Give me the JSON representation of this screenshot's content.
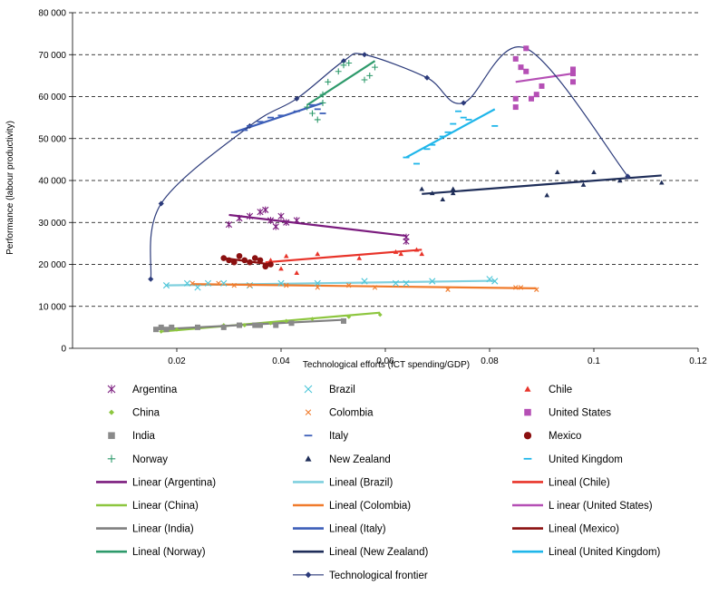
{
  "chart_data": {
    "type": "scatter",
    "xlabel": "Technological efforts (ICT spending/GDP)",
    "ylabel": "Performance (labour productivity)",
    "xlim": [
      0,
      0.12
    ],
    "ylim": [
      0,
      80000
    ],
    "x_ticks": [
      0.02,
      0.04,
      0.06,
      0.08,
      0.1,
      0.12
    ],
    "x_tick_labels": [
      "0.02",
      "0.04",
      "0.06",
      "0.08",
      "0.1",
      "0.12"
    ],
    "y_ticks": [
      0,
      10000,
      20000,
      30000,
      40000,
      50000,
      60000,
      70000,
      80000
    ],
    "y_tick_labels": [
      "0",
      "10 000",
      "20 000",
      "30 000",
      "40 000",
      "50 000",
      "60 000",
      "70 000",
      "80 000"
    ],
    "grid": "horizontal dashed",
    "legend_position": "bottom",
    "series": [
      {
        "name": "Argentina",
        "marker": "asterisk",
        "color": "#7b1c7e",
        "points": [
          [
            0.03,
            29500
          ],
          [
            0.032,
            31000
          ],
          [
            0.034,
            31500
          ],
          [
            0.036,
            32500
          ],
          [
            0.037,
            33000
          ],
          [
            0.038,
            30500
          ],
          [
            0.039,
            29000
          ],
          [
            0.04,
            31500
          ],
          [
            0.041,
            30000
          ],
          [
            0.043,
            30500
          ],
          [
            0.064,
            25500
          ],
          [
            0.064,
            26500
          ]
        ]
      },
      {
        "name": "Brazil",
        "marker": "x",
        "color": "#4cc6d8",
        "points": [
          [
            0.018,
            15000
          ],
          [
            0.022,
            15500
          ],
          [
            0.024,
            14500
          ],
          [
            0.026,
            15500
          ],
          [
            0.029,
            15500
          ],
          [
            0.034,
            15000
          ],
          [
            0.04,
            15500
          ],
          [
            0.047,
            15500
          ],
          [
            0.056,
            16000
          ],
          [
            0.062,
            15500
          ],
          [
            0.064,
            15500
          ],
          [
            0.069,
            16000
          ],
          [
            0.08,
            16500
          ],
          [
            0.081,
            16000
          ]
        ]
      },
      {
        "name": "Chile",
        "marker": "triangle",
        "color": "#e8342a",
        "points": [
          [
            0.038,
            21000
          ],
          [
            0.04,
            19000
          ],
          [
            0.041,
            22000
          ],
          [
            0.043,
            18000
          ],
          [
            0.047,
            22500
          ],
          [
            0.055,
            21500
          ],
          [
            0.062,
            23000
          ],
          [
            0.063,
            22500
          ],
          [
            0.066,
            23500
          ],
          [
            0.067,
            22500
          ]
        ]
      },
      {
        "name": "China",
        "marker": "diamond",
        "color": "#8dc63f",
        "points": [
          [
            0.017,
            4000
          ],
          [
            0.02,
            4500
          ],
          [
            0.024,
            5000
          ],
          [
            0.029,
            5500
          ],
          [
            0.033,
            5500
          ],
          [
            0.038,
            6000
          ],
          [
            0.041,
            6500
          ],
          [
            0.046,
            7000
          ],
          [
            0.053,
            7500
          ],
          [
            0.059,
            8000
          ]
        ]
      },
      {
        "name": "Colombia",
        "marker": "x-small",
        "color": "#f07b2c",
        "points": [
          [
            0.023,
            15500
          ],
          [
            0.028,
            15500
          ],
          [
            0.031,
            15000
          ],
          [
            0.034,
            15000
          ],
          [
            0.041,
            15000
          ],
          [
            0.047,
            14500
          ],
          [
            0.053,
            15000
          ],
          [
            0.058,
            14500
          ],
          [
            0.072,
            14000
          ],
          [
            0.085,
            14500
          ],
          [
            0.086,
            14500
          ],
          [
            0.089,
            14000
          ]
        ]
      },
      {
        "name": "United States",
        "marker": "square",
        "color": "#b54fb5",
        "points": [
          [
            0.085,
            57500
          ],
          [
            0.085,
            59500
          ],
          [
            0.085,
            69000
          ],
          [
            0.086,
            67000
          ],
          [
            0.087,
            71500
          ],
          [
            0.087,
            66000
          ],
          [
            0.088,
            59500
          ],
          [
            0.089,
            60500
          ],
          [
            0.09,
            62500
          ],
          [
            0.096,
            66500
          ],
          [
            0.096,
            65500
          ],
          [
            0.096,
            63500
          ]
        ]
      },
      {
        "name": "India",
        "marker": "square",
        "color": "#8a8a8a",
        "points": [
          [
            0.016,
            4500
          ],
          [
            0.017,
            5000
          ],
          [
            0.018,
            4500
          ],
          [
            0.019,
            5000
          ],
          [
            0.024,
            5000
          ],
          [
            0.029,
            5000
          ],
          [
            0.032,
            5500
          ],
          [
            0.035,
            5500
          ],
          [
            0.036,
            5500
          ],
          [
            0.039,
            5500
          ],
          [
            0.042,
            6000
          ],
          [
            0.052,
            6500
          ]
        ]
      },
      {
        "name": "Italy",
        "marker": "dash",
        "color": "#3d5fb8",
        "points": [
          [
            0.031,
            51500
          ],
          [
            0.033,
            52000
          ],
          [
            0.034,
            53000
          ],
          [
            0.036,
            54000
          ],
          [
            0.038,
            55000
          ],
          [
            0.04,
            55500
          ],
          [
            0.043,
            56500
          ],
          [
            0.046,
            58000
          ],
          [
            0.047,
            57000
          ],
          [
            0.048,
            56000
          ]
        ]
      },
      {
        "name": "Mexico",
        "marker": "circle",
        "color": "#8b1010",
        "points": [
          [
            0.029,
            21500
          ],
          [
            0.03,
            21000
          ],
          [
            0.031,
            20500
          ],
          [
            0.032,
            22000
          ],
          [
            0.033,
            21000
          ],
          [
            0.034,
            20500
          ],
          [
            0.035,
            21500
          ],
          [
            0.036,
            21000
          ],
          [
            0.037,
            19500
          ],
          [
            0.038,
            20000
          ]
        ]
      },
      {
        "name": "Norway",
        "marker": "plus",
        "color": "#2e9a6b",
        "points": [
          [
            0.045,
            57500
          ],
          [
            0.046,
            56000
          ],
          [
            0.047,
            54500
          ],
          [
            0.048,
            60500
          ],
          [
            0.048,
            58500
          ],
          [
            0.049,
            63500
          ],
          [
            0.051,
            66000
          ],
          [
            0.052,
            67500
          ],
          [
            0.053,
            68000
          ],
          [
            0.056,
            64000
          ],
          [
            0.057,
            65000
          ],
          [
            0.058,
            67000
          ]
        ]
      },
      {
        "name": "New Zealand",
        "marker": "triangle",
        "color": "#1f2e59",
        "points": [
          [
            0.067,
            38000
          ],
          [
            0.069,
            37000
          ],
          [
            0.071,
            35500
          ],
          [
            0.073,
            37000
          ],
          [
            0.073,
            38000
          ],
          [
            0.091,
            36500
          ],
          [
            0.093,
            42000
          ],
          [
            0.098,
            39000
          ],
          [
            0.1,
            42000
          ],
          [
            0.105,
            40000
          ],
          [
            0.113,
            39500
          ]
        ]
      },
      {
        "name": "United Kingdom",
        "marker": "dash",
        "color": "#1fb6ea",
        "points": [
          [
            0.064,
            45500
          ],
          [
            0.066,
            44000
          ],
          [
            0.068,
            47500
          ],
          [
            0.069,
            48500
          ],
          [
            0.071,
            50500
          ],
          [
            0.072,
            51500
          ],
          [
            0.073,
            53500
          ],
          [
            0.074,
            56500
          ],
          [
            0.075,
            55000
          ],
          [
            0.076,
            54500
          ],
          [
            0.081,
            53000
          ]
        ]
      }
    ],
    "trendlines": [
      {
        "name": "Linear (Argentina)",
        "color": "#7b1c7e",
        "x": [
          0.03,
          0.064
        ],
        "y": [
          31800,
          26800
        ]
      },
      {
        "name": "Lineal (Brazil)",
        "color": "#7fd0de",
        "x": [
          0.018,
          0.081
        ],
        "y": [
          15000,
          16100
        ]
      },
      {
        "name": "Lineal (Chile)",
        "color": "#e8342a",
        "x": [
          0.037,
          0.067
        ],
        "y": [
          20500,
          23500
        ]
      },
      {
        "name": "Linear (China)",
        "color": "#8dc63f",
        "x": [
          0.017,
          0.059
        ],
        "y": [
          4000,
          8500
        ]
      },
      {
        "name": "Lineal (Colombia)",
        "color": "#f07b2c",
        "x": [
          0.023,
          0.089
        ],
        "y": [
          15300,
          14300
        ]
      },
      {
        "name": "Linear (United States)",
        "color": "#b54fb5",
        "x": [
          0.085,
          0.096
        ],
        "y": [
          63500,
          65500
        ]
      },
      {
        "name": "Linear (India)",
        "color": "#808080",
        "x": [
          0.016,
          0.052
        ],
        "y": [
          4500,
          6800
        ]
      },
      {
        "name": "Lineal (Italy)",
        "color": "#3d5fb8",
        "x": [
          0.031,
          0.048
        ],
        "y": [
          51500,
          58500
        ]
      },
      {
        "name": "Lineal (Mexico)",
        "color": "#8b1010",
        "x": [
          0.029,
          0.038
        ],
        "y": [
          21500,
          20000
        ]
      },
      {
        "name": "Lineal (Norway)",
        "color": "#2e9a6b",
        "x": [
          0.045,
          0.058
        ],
        "y": [
          58000,
          68500
        ]
      },
      {
        "name": "Lineal (New Zealand)",
        "color": "#1f2e59",
        "x": [
          0.067,
          0.113
        ],
        "y": [
          36800,
          41200
        ]
      },
      {
        "name": "Lineal (United Kingdom)",
        "color": "#1fb6ea",
        "x": [
          0.064,
          0.081
        ],
        "y": [
          45500,
          57000
        ]
      }
    ],
    "frontier": {
      "name": "Technological frontier",
      "color": "#2b3a7a",
      "points": [
        [
          0.015,
          16500
        ],
        [
          0.017,
          34500
        ],
        [
          0.034,
          53000
        ],
        [
          0.043,
          59500
        ],
        [
          0.052,
          68500
        ],
        [
          0.056,
          70000
        ],
        [
          0.068,
          64500
        ],
        [
          0.075,
          58500
        ],
        [
          0.087,
          71500
        ],
        [
          0.1065,
          41000
        ]
      ]
    },
    "legend": {
      "rows": [
        [
          {
            "label": "Argentina",
            "ref": "s0"
          },
          {
            "label": "Brazil",
            "ref": "s1"
          },
          {
            "label": "Chile",
            "ref": "s2"
          }
        ],
        [
          {
            "label": "China",
            "ref": "s3"
          },
          {
            "label": "Colombia",
            "ref": "s4"
          },
          {
            "label": "United States",
            "ref": "s5"
          }
        ],
        [
          {
            "label": "India",
            "ref": "s6"
          },
          {
            "label": "Italy",
            "ref": "s7"
          },
          {
            "label": "Mexico",
            "ref": "s8"
          }
        ],
        [
          {
            "label": "Norway",
            "ref": "s9"
          },
          {
            "label": "New Zealand",
            "ref": "s10"
          },
          {
            "label": "United Kingdom",
            "ref": "s11"
          }
        ],
        [
          {
            "label": "Linear (Argentina)",
            "ref": "t0"
          },
          {
            "label": "Lineal (Brazil)",
            "ref": "t1"
          },
          {
            "label": "Lineal (Chile)",
            "ref": "t2"
          }
        ],
        [
          {
            "label": "Linear (China)",
            "ref": "t3"
          },
          {
            "label": "Lineal (Colombia)",
            "ref": "t4"
          },
          {
            "label": "L inear (United States)",
            "ref": "t5"
          }
        ],
        [
          {
            "label": "Linear (India)",
            "ref": "t6"
          },
          {
            "label": "Lineal (Italy)",
            "ref": "t7"
          },
          {
            "label": "Lineal (Mexico)",
            "ref": "t8"
          }
        ],
        [
          {
            "label": "Lineal (Norway)",
            "ref": "t9"
          },
          {
            "label": "Lineal (New Zealand)",
            "ref": "t10"
          },
          {
            "label": "Lineal (United Kingdom)",
            "ref": "t11"
          }
        ],
        [
          null,
          {
            "label": "Technological frontier",
            "ref": "f"
          },
          null
        ]
      ]
    }
  }
}
